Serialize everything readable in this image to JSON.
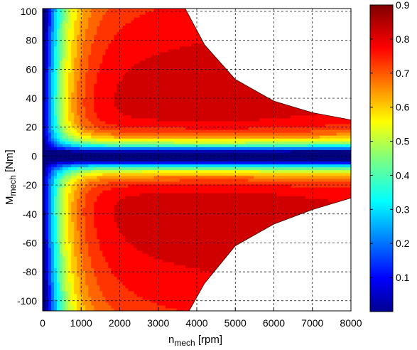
{
  "chart_data": {
    "type": "heatmap",
    "subtype": "filled-contour",
    "xlabel": {
      "main": "n",
      "sub": "mech",
      "unit": " [rpm]"
    },
    "ylabel": {
      "main": "M",
      "sub": "mech",
      "unit": " [Nm]"
    },
    "xlim": [
      0,
      8000
    ],
    "ylim": [
      -107,
      102
    ],
    "xticks": [
      0,
      1000,
      2000,
      3000,
      4000,
      5000,
      6000,
      7000,
      8000
    ],
    "xtick_labels": [
      "0",
      "1000",
      "2000",
      "3000",
      "4000",
      "5000",
      "6000",
      "7000",
      "8000"
    ],
    "yticks": [
      100,
      80,
      60,
      40,
      20,
      0,
      -20,
      -40,
      -60,
      -80,
      -100
    ],
    "ytick_labels": [
      "100",
      "80",
      "60",
      "40",
      "20",
      "0",
      "-20",
      "-40",
      "-60",
      "-80",
      "-100"
    ],
    "grid": true,
    "colorbar": {
      "colormap": "jet",
      "clim": [
        0,
        0.9
      ],
      "ticks": [
        0.1,
        0.2,
        0.3,
        0.4,
        0.5,
        0.6,
        0.7,
        0.8,
        0.9
      ],
      "tick_labels": [
        "0.1",
        "0.2",
        "0.3",
        "0.4",
        "0.5",
        "0.6",
        "0.7",
        "0.8",
        "0.9"
      ],
      "placement": "right"
    },
    "operating_envelope": {
      "upper_torque_limit": [
        [
          0,
          102
        ],
        [
          3700,
          102
        ],
        [
          4200,
          77
        ],
        [
          5000,
          53
        ],
        [
          6000,
          38
        ],
        [
          7000,
          30
        ],
        [
          8000,
          25
        ]
      ],
      "lower_torque_limit": [
        [
          0,
          -107
        ],
        [
          3800,
          -107
        ],
        [
          4200,
          -88
        ],
        [
          5000,
          -62
        ],
        [
          6000,
          -47
        ],
        [
          7000,
          -37
        ],
        [
          8000,
          -29
        ]
      ]
    },
    "efficiency_field": {
      "description_values": "efficiency rises from ~0 at n=0 to ~0.9 plateau, low-efficiency band near M=0",
      "sample_points": [
        {
          "n": 200,
          "M": 60,
          "efficiency": 0.3
        },
        {
          "n": 500,
          "M": 60,
          "efficiency": 0.6
        },
        {
          "n": 1000,
          "M": 60,
          "efficiency": 0.75
        },
        {
          "n": 2000,
          "M": 60,
          "efficiency": 0.82
        },
        {
          "n": 4000,
          "M": 50,
          "efficiency": 0.88
        },
        {
          "n": 5000,
          "M": -50,
          "efficiency": 0.88
        },
        {
          "n": 6000,
          "M": 0,
          "efficiency": 0.02
        }
      ],
      "peak": 0.9
    }
  }
}
